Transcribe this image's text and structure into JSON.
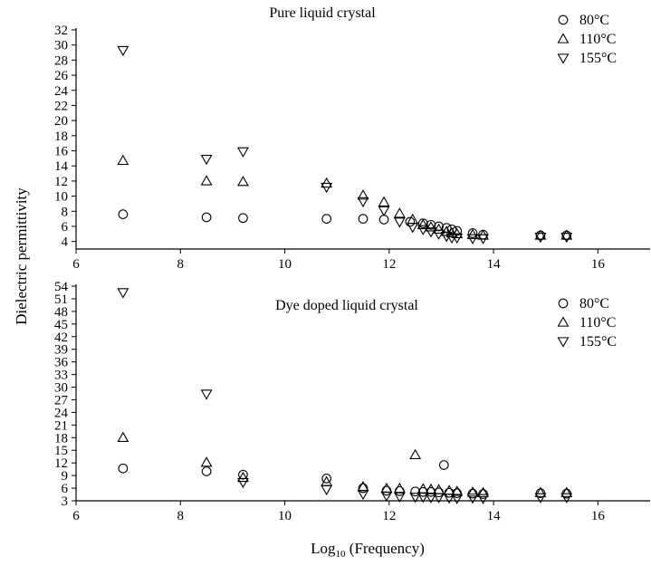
{
  "chart_data": [
    {
      "type": "scatter",
      "title": "Pure liquid crystal",
      "xlim": [
        6,
        16
      ],
      "ylim": [
        3,
        32
      ],
      "xticks": [
        6,
        8,
        10,
        12,
        14,
        16
      ],
      "yticks": [
        4,
        6,
        8,
        10,
        12,
        14,
        16,
        18,
        20,
        22,
        24,
        26,
        28,
        30,
        32
      ],
      "legend_position": "top-right",
      "series": [
        {
          "name": "80°C",
          "marker": "circle",
          "points": [
            [
              6.9,
              7.6
            ],
            [
              8.5,
              7.2
            ],
            [
              9.2,
              7.1
            ],
            [
              10.8,
              7.0
            ],
            [
              11.5,
              7.0
            ],
            [
              11.9,
              6.9
            ],
            [
              12.4,
              6.6
            ],
            [
              12.65,
              6.4
            ],
            [
              12.8,
              6.2
            ],
            [
              12.95,
              6.0
            ],
            [
              13.1,
              5.8
            ],
            [
              13.2,
              5.6
            ],
            [
              13.3,
              5.4
            ],
            [
              13.6,
              5.1
            ],
            [
              13.8,
              4.9
            ],
            [
              14.9,
              4.8
            ],
            [
              15.4,
              4.8
            ]
          ]
        },
        {
          "name": "110°C",
          "marker": "triangle-up",
          "points": [
            [
              6.9,
              14.7
            ],
            [
              8.5,
              12.0
            ],
            [
              9.2,
              11.9
            ],
            [
              10.8,
              11.7
            ],
            [
              11.5,
              10.1
            ],
            [
              11.9,
              9.2
            ],
            [
              12.2,
              7.7
            ],
            [
              12.45,
              6.9
            ],
            [
              12.65,
              6.2
            ],
            [
              12.8,
              5.9
            ],
            [
              12.95,
              5.6
            ],
            [
              13.1,
              5.3
            ],
            [
              13.2,
              5.1
            ],
            [
              13.3,
              5.0
            ],
            [
              13.6,
              4.9
            ],
            [
              13.8,
              4.8
            ],
            [
              14.9,
              4.8
            ],
            [
              15.4,
              4.8
            ]
          ]
        },
        {
          "name": "155°C",
          "marker": "triangle-down",
          "points": [
            [
              6.9,
              29.3
            ],
            [
              8.5,
              14.9
            ],
            [
              9.2,
              15.9
            ],
            [
              10.8,
              11.2
            ],
            [
              11.5,
              9.3
            ],
            [
              11.9,
              8.1
            ],
            [
              12.2,
              6.6
            ],
            [
              12.45,
              5.9
            ],
            [
              12.65,
              5.6
            ],
            [
              12.8,
              5.3
            ],
            [
              12.95,
              5.0
            ],
            [
              13.1,
              4.7
            ],
            [
              13.2,
              4.5
            ],
            [
              13.3,
              4.5
            ],
            [
              13.6,
              4.4
            ],
            [
              13.8,
              4.4
            ],
            [
              14.9,
              4.6
            ],
            [
              15.4,
              4.6
            ]
          ]
        }
      ]
    },
    {
      "type": "scatter",
      "title": "Dye doped liquid crystal",
      "xlim": [
        6,
        17
      ],
      "ylim": [
        3,
        54
      ],
      "xticks": [
        6,
        8,
        10,
        12,
        14,
        16
      ],
      "yticks": [
        3,
        6,
        9,
        12,
        15,
        18,
        21,
        24,
        27,
        30,
        33,
        36,
        39,
        42,
        45,
        48,
        51,
        54
      ],
      "legend_position": "top-right",
      "series": [
        {
          "name": "80°C",
          "marker": "circle",
          "points": [
            [
              6.9,
              10.7
            ],
            [
              8.5,
              10.0
            ],
            [
              9.2,
              9.2
            ],
            [
              10.8,
              8.3
            ],
            [
              11.5,
              6.0
            ],
            [
              11.95,
              5.4
            ],
            [
              12.2,
              5.3
            ],
            [
              12.5,
              5.2
            ],
            [
              12.65,
              5.1
            ],
            [
              12.8,
              5.1
            ],
            [
              12.95,
              5.0
            ],
            [
              13.05,
              11.5
            ],
            [
              13.15,
              4.9
            ],
            [
              13.3,
              4.8
            ],
            [
              13.6,
              4.7
            ],
            [
              13.8,
              4.6
            ],
            [
              14.9,
              4.8
            ],
            [
              15.4,
              4.7
            ]
          ]
        },
        {
          "name": "110°C",
          "marker": "triangle-up",
          "points": [
            [
              6.9,
              18.0
            ],
            [
              8.5,
              12.1
            ],
            [
              9.2,
              8.5
            ],
            [
              10.8,
              7.5
            ],
            [
              11.5,
              6.3
            ],
            [
              11.95,
              5.9
            ],
            [
              12.2,
              5.9
            ],
            [
              12.5,
              13.9
            ],
            [
              12.65,
              5.8
            ],
            [
              12.8,
              5.7
            ],
            [
              12.95,
              5.6
            ],
            [
              13.15,
              5.4
            ],
            [
              13.3,
              5.2
            ],
            [
              13.6,
              5.0
            ],
            [
              13.8,
              4.9
            ],
            [
              14.9,
              4.9
            ],
            [
              15.4,
              4.9
            ]
          ]
        },
        {
          "name": "155°C",
          "marker": "triangle-down",
          "points": [
            [
              6.9,
              52.5
            ],
            [
              8.5,
              28.4
            ],
            [
              9.2,
              7.4
            ],
            [
              10.8,
              5.7
            ],
            [
              11.5,
              4.6
            ],
            [
              11.95,
              4.2
            ],
            [
              12.2,
              4.0
            ],
            [
              12.5,
              3.9
            ],
            [
              12.65,
              3.9
            ],
            [
              12.8,
              3.8
            ],
            [
              12.95,
              3.8
            ],
            [
              13.15,
              3.7
            ],
            [
              13.3,
              3.6
            ],
            [
              13.6,
              3.7
            ],
            [
              13.8,
              3.6
            ],
            [
              14.9,
              3.8
            ],
            [
              15.4,
              3.8
            ]
          ]
        }
      ]
    }
  ],
  "ylabel": "Dielectric permittivity",
  "xlabel": "Log",
  "xlabel_subscript": "10",
  "xlabel_suffix": " (Frequency)"
}
